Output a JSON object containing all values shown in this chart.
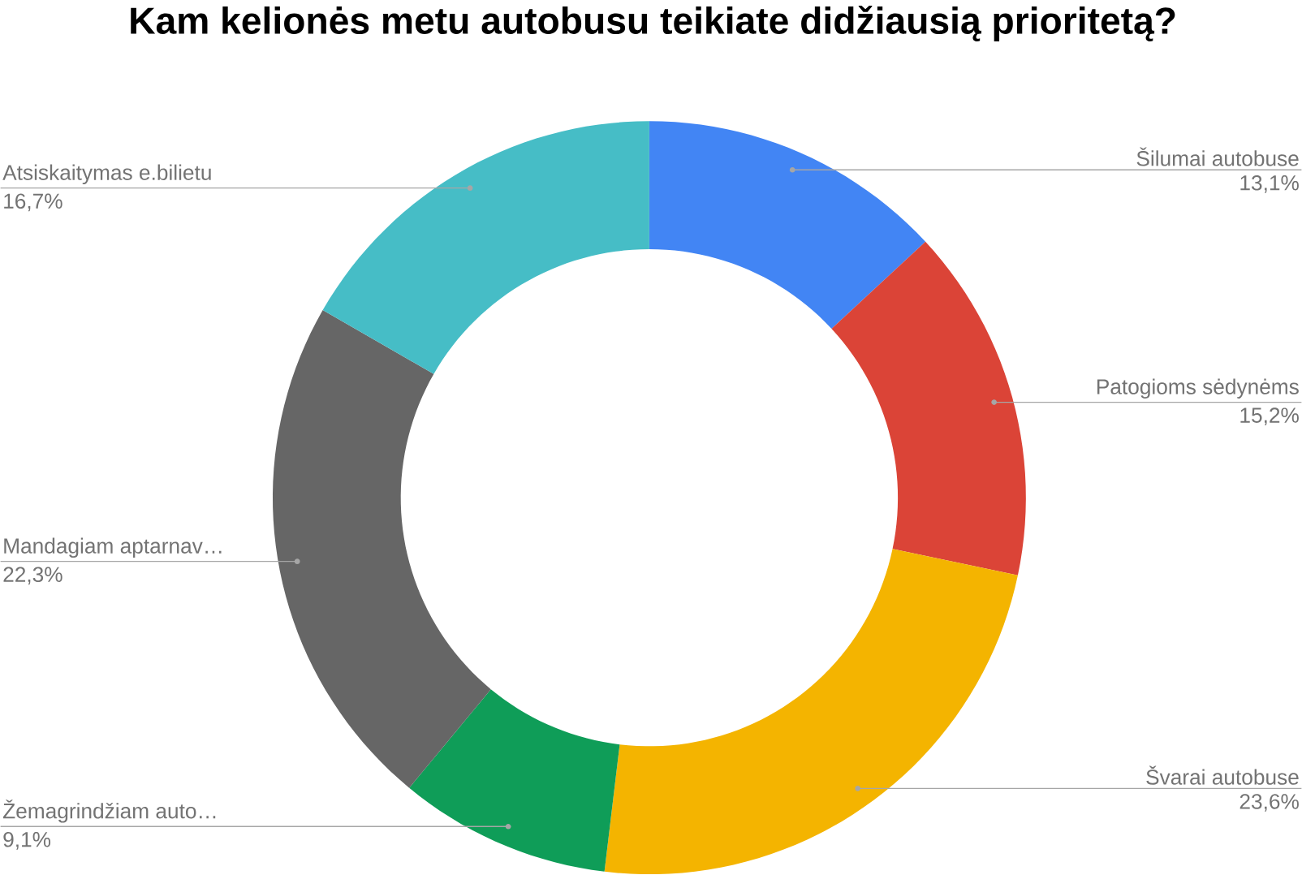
{
  "chart_data": {
    "type": "donut",
    "title": "Kam kelionės metu autobusu teikiate didžiausią prioritetą?",
    "categories": [
      "Šilumai autobuse",
      "Patogioms sėdynėms",
      "Švarai autobuse",
      "Žemagrindžiam auto…",
      "Mandagiam aptarnav…",
      "Atsiskaitymas e.bilietu"
    ],
    "values": [
      13.1,
      15.2,
      23.6,
      9.1,
      22.3,
      16.7
    ],
    "value_labels": [
      "13,1%",
      "15,2%",
      "23,6%",
      "9,1%",
      "22,3%",
      "16,7%"
    ],
    "colors": [
      "#4285f4",
      "#db4437",
      "#f4b400",
      "#0f9d58",
      "#666666",
      "#46bdc6"
    ]
  }
}
